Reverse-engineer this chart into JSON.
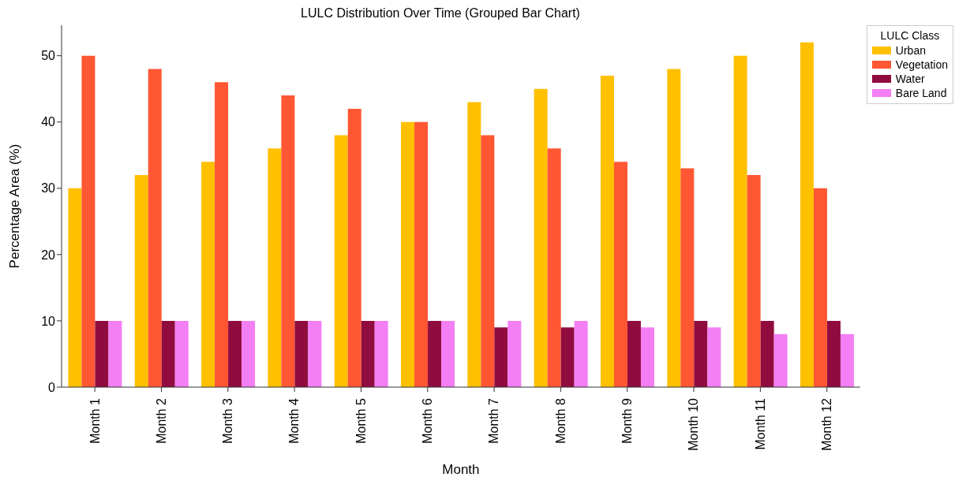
{
  "chart_data": {
    "type": "bar",
    "title": "LULC Distribution Over Time (Grouped Bar Chart)",
    "xlabel": "Month",
    "ylabel": "Percentage Area (%)",
    "legend_title": "LULC Class",
    "categories": [
      "Month 1",
      "Month 2",
      "Month 3",
      "Month 4",
      "Month 5",
      "Month 6",
      "Month 7",
      "Month 8",
      "Month 9",
      "Month 10",
      "Month 11",
      "Month 12"
    ],
    "series": [
      {
        "name": "Urban",
        "color": "#ffc000",
        "values": [
          30,
          32,
          34,
          36,
          38,
          40,
          43,
          45,
          47,
          48,
          50,
          52
        ]
      },
      {
        "name": "Vegetation",
        "color": "#ff5733",
        "values": [
          50,
          48,
          46,
          44,
          42,
          40,
          38,
          36,
          34,
          33,
          32,
          30
        ]
      },
      {
        "name": "Water",
        "color": "#900c3f",
        "values": [
          10,
          10,
          10,
          10,
          10,
          10,
          9,
          9,
          10,
          10,
          10,
          10
        ]
      },
      {
        "name": "Bare Land",
        "color": "#f47ef4",
        "values": [
          10,
          10,
          10,
          10,
          10,
          10,
          10,
          10,
          9,
          9,
          8,
          8
        ]
      }
    ],
    "ylim": [
      0,
      54.6
    ],
    "yticks": [
      0,
      10,
      20,
      30,
      40,
      50
    ],
    "grid": false,
    "legend": "top right"
  }
}
